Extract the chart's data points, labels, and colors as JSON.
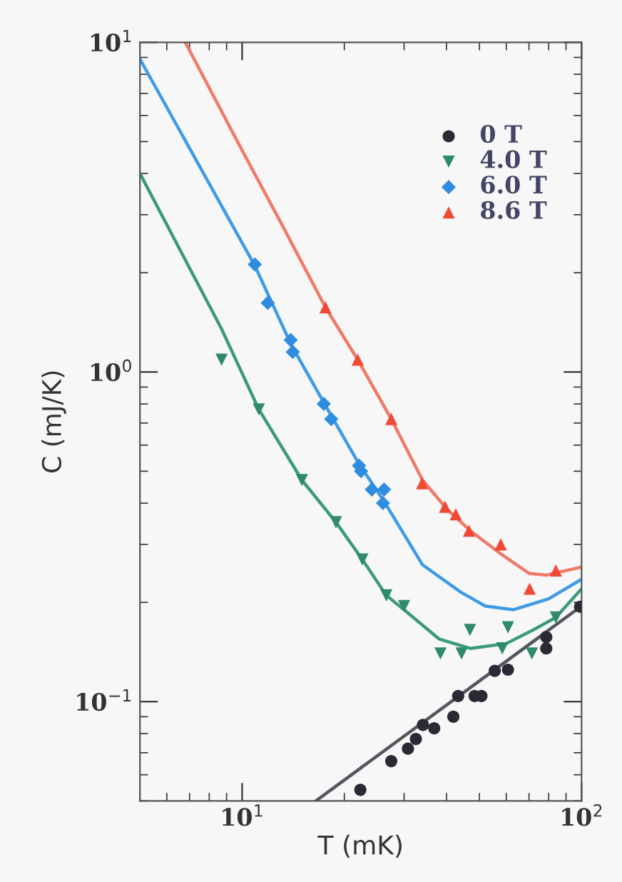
{
  "chart_data": {
    "type": "scatter",
    "xlabel": "T (mK)",
    "ylabel": "C (mJ/K)",
    "log": "xy",
    "xlim": [
      5,
      100
    ],
    "ylim": [
      0.05,
      10
    ],
    "xticks": [
      {
        "value": 10,
        "label": "10$^{1}$"
      },
      {
        "value": 100,
        "label": "10$^{2}$"
      }
    ],
    "yticks": [
      {
        "value": 0.1,
        "label": "10$^{−1}$"
      },
      {
        "value": 1,
        "label": "10$^{0}$"
      },
      {
        "value": 10,
        "label": "10$^{1}$"
      }
    ],
    "grid": false,
    "legend": "top right",
    "series": [
      {
        "name": "0 T",
        "marker": "circle",
        "color": "#2a2a35",
        "x": [
          22.3,
          27.5,
          30.8,
          32.5,
          34.1,
          36.8,
          41.9,
          43.3,
          48.4,
          50.7,
          55.5,
          60.7,
          78.7,
          78.7,
          99
        ],
        "values": [
          0.054,
          0.066,
          0.072,
          0.077,
          0.085,
          0.083,
          0.09,
          0.104,
          0.104,
          0.104,
          0.124,
          0.125,
          0.145,
          0.157,
          0.194
        ]
      },
      {
        "name": "4.0 T",
        "marker": "triangle_down",
        "color": "#2e8a6c",
        "x": [
          8.7,
          11.2,
          15.0,
          18.9,
          22.6,
          26.6,
          30.0,
          38.4,
          44.3,
          46.9,
          58.4,
          60.7,
          71.4,
          84
        ],
        "values": [
          1.09,
          0.77,
          0.47,
          0.35,
          0.27,
          0.21,
          0.195,
          0.14,
          0.14,
          0.165,
          0.145,
          0.168,
          0.14,
          0.18
        ]
      },
      {
        "name": "6.0 T",
        "marker": "diamond",
        "color": "#2f8de0",
        "x": [
          10.9,
          11.9,
          13.9,
          14.1,
          17.4,
          18.3,
          22.1,
          22.4,
          24.1,
          26.2,
          26.0
        ],
        "values": [
          2.12,
          1.62,
          1.25,
          1.15,
          0.8,
          0.72,
          0.52,
          0.5,
          0.44,
          0.44,
          0.4
        ]
      },
      {
        "name": "8.6 T",
        "marker": "triangle",
        "color": "#f04a35",
        "x": [
          17.6,
          21.9,
          27.5,
          33.9,
          39.6,
          42.6,
          46.6,
          57.8,
          70.3,
          84
        ],
        "values": [
          1.57,
          1.09,
          0.72,
          0.46,
          0.39,
          0.37,
          0.33,
          0.3,
          0.22,
          0.25
        ]
      },
      {
        "type": "line",
        "color": "#555560",
        "x": [
          16.5,
          100
        ],
        "values": [
          0.05,
          0.195
        ]
      },
      {
        "type": "line",
        "color": "#3a9a7a",
        "x": [
          5,
          8.7,
          11.2,
          15,
          18.9,
          22.6,
          26.6,
          30,
          38,
          47,
          60,
          72,
          84,
          100
        ],
        "values": [
          4.0,
          1.35,
          0.77,
          0.47,
          0.35,
          0.27,
          0.21,
          0.19,
          0.155,
          0.145,
          0.15,
          0.165,
          0.18,
          0.22
        ]
      },
      {
        "type": "line",
        "color": "#3d9be8",
        "x": [
          5,
          7.5,
          10.9,
          14,
          18,
          22,
          26,
          34,
          44,
          52,
          63,
          80,
          100
        ],
        "values": [
          8.9,
          4.2,
          2.1,
          1.2,
          0.76,
          0.53,
          0.41,
          0.26,
          0.215,
          0.195,
          0.19,
          0.205,
          0.235
        ]
      },
      {
        "type": "line",
        "color": "#f07a68",
        "x": [
          6.8,
          10,
          13,
          17.6,
          21.9,
          27.5,
          34,
          40,
          47,
          58,
          70,
          78.7,
          100
        ],
        "values": [
          10,
          4.7,
          2.84,
          1.57,
          1.09,
          0.72,
          0.47,
          0.385,
          0.33,
          0.28,
          0.245,
          0.242,
          0.256
        ]
      }
    ]
  }
}
